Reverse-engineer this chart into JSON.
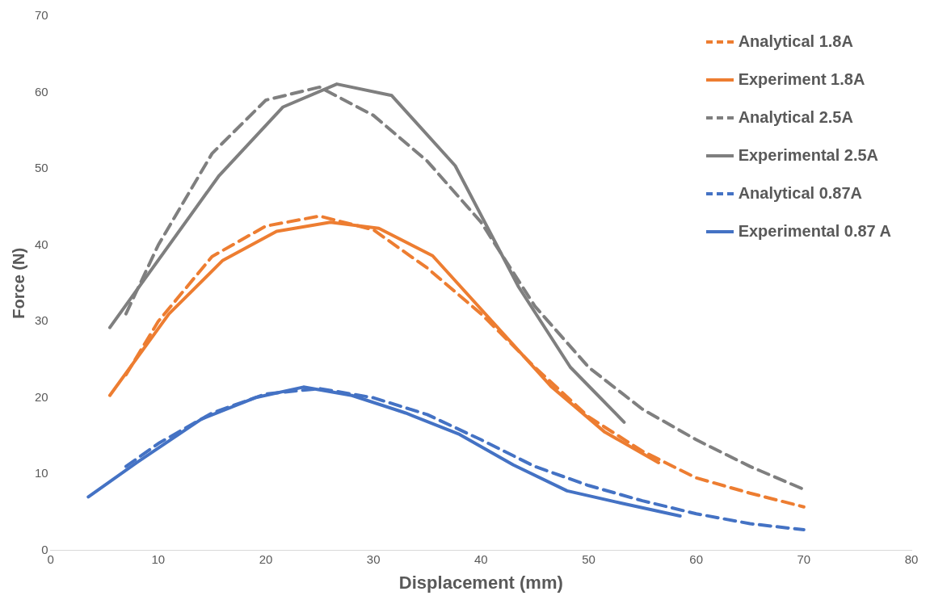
{
  "chart_data": {
    "type": "line",
    "xlabel": "Displacement (mm)",
    "ylabel": "Force (N)",
    "xlim": [
      0,
      80
    ],
    "xticks": [
      0,
      10,
      20,
      30,
      40,
      50,
      60,
      70,
      80
    ],
    "ylim": [
      0,
      70
    ],
    "yticks": [
      0,
      10,
      20,
      30,
      40,
      50,
      60,
      70
    ],
    "grid": false,
    "legend": "top right",
    "marker": "none",
    "series": [
      {
        "name": "Analytical 1.8A",
        "color": "#ed7d31",
        "line_style": "dashed",
        "x": [
          7,
          10,
          15,
          20,
          25,
          30,
          35,
          40,
          45,
          50,
          55,
          60,
          65,
          70
        ],
        "values": [
          23,
          30,
          38.5,
          42.5,
          43.8,
          42,
          37,
          31,
          24,
          17.5,
          13,
          9.5,
          7.5,
          5.7
        ]
      },
      {
        "name": "Experiment 1.8A",
        "color": "#ed7d31",
        "line_style": "solid",
        "x": [
          5.5,
          11,
          16,
          21,
          26,
          30.5,
          35.5,
          46.5,
          51.5,
          56.5
        ],
        "values": [
          20.3,
          31,
          38,
          41.8,
          43,
          42.2,
          38.6,
          21.5,
          15.5,
          11.5
        ]
      },
      {
        "name": "Analytical 2.5A",
        "color": "#7f7f7f",
        "line_style": "dashed",
        "x": [
          7,
          10,
          15,
          20,
          25,
          30,
          35,
          40,
          45,
          50,
          55,
          60,
          65,
          70
        ],
        "values": [
          31,
          40,
          52,
          59,
          60.7,
          57,
          51,
          43,
          32,
          24,
          18.5,
          14.5,
          11,
          8
        ]
      },
      {
        "name": "Experimental 2.5A",
        "color": "#7f7f7f",
        "line_style": "solid",
        "x": [
          5.5,
          15.6,
          21.6,
          26.6,
          31.7,
          37.6,
          43.5,
          48.3,
          53.3
        ],
        "values": [
          29.2,
          49,
          58.1,
          61.1,
          59.6,
          50.4,
          34.5,
          24,
          16.8
        ]
      },
      {
        "name": "Analytical 0.87A",
        "color": "#4472c4",
        "line_style": "dashed",
        "x": [
          7,
          10,
          15,
          20,
          25,
          30,
          35,
          40,
          45,
          50,
          55,
          60,
          65,
          70
        ],
        "values": [
          11,
          14,
          18,
          20.5,
          21.2,
          20,
          17.8,
          14.5,
          11,
          8.5,
          6.5,
          4.8,
          3.5,
          2.7
        ]
      },
      {
        "name": "Experimental 0.87 A",
        "color": "#4472c4",
        "line_style": "solid",
        "x": [
          3.5,
          8,
          14,
          19,
          23.5,
          28,
          33,
          38,
          43,
          48,
          53,
          58.5
        ],
        "values": [
          7,
          11.5,
          17.2,
          20,
          21.4,
          20.3,
          18,
          15.2,
          11.2,
          7.8,
          6.2,
          4.5
        ]
      }
    ]
  }
}
